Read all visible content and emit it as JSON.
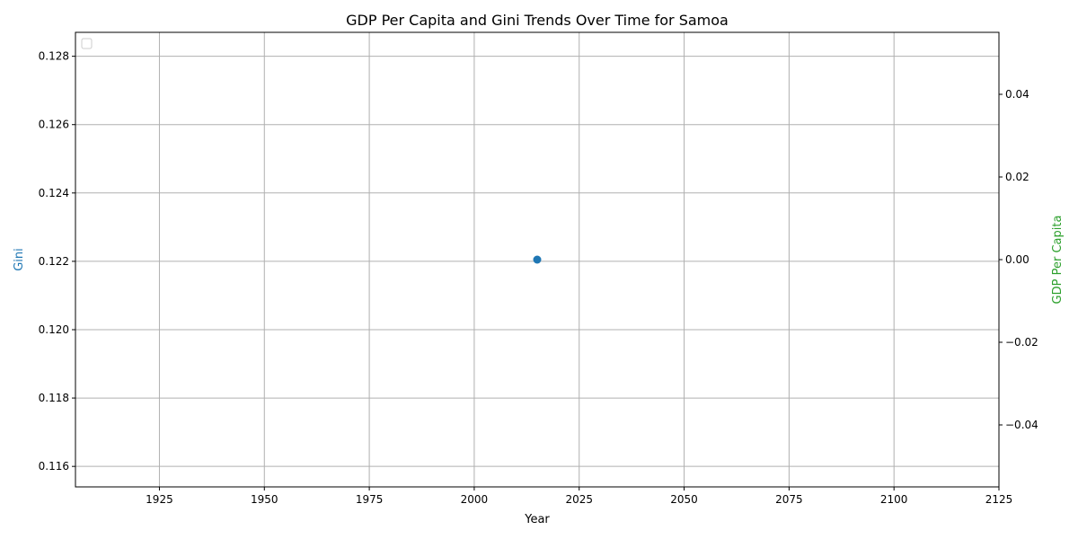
{
  "chart_data": {
    "type": "scatter",
    "title": "GDP Per Capita and Gini Trends Over Time for Samoa",
    "xlabel": "Year",
    "ylabel_left": "Gini",
    "ylabel_right": "GDP Per Capita",
    "xlim": [
      1905,
      2125
    ],
    "ylim_left": [
      0.1154,
      0.1287
    ],
    "ylim_right": [
      -0.055,
      0.055
    ],
    "x_ticks": [
      1925,
      1950,
      1975,
      2000,
      2025,
      2050,
      2075,
      2100,
      2125
    ],
    "y_left_ticks": [
      0.116,
      0.118,
      0.12,
      0.122,
      0.124,
      0.126,
      0.128
    ],
    "y_left_tick_labels": [
      "0.116",
      "0.118",
      "0.120",
      "0.122",
      "0.124",
      "0.126",
      "0.128"
    ],
    "y_right_ticks": [
      -0.04,
      -0.02,
      0.0,
      0.02,
      0.04
    ],
    "y_right_tick_labels": [
      "−0.04",
      "−0.02",
      "0.00",
      "0.02",
      "0.04"
    ],
    "grid": true,
    "legend": "top-left (empty)",
    "series": [
      {
        "axis": "left",
        "color": "#1f77b4",
        "points": [
          {
            "x": 2015,
            "y": 0.12205
          }
        ]
      },
      {
        "axis": "right",
        "color": "#2ca02c",
        "points": []
      }
    ],
    "colors": {
      "gini_label": "#1f77b4",
      "gdp_label": "#2ca02c",
      "grid": "#b0b0b0"
    }
  }
}
